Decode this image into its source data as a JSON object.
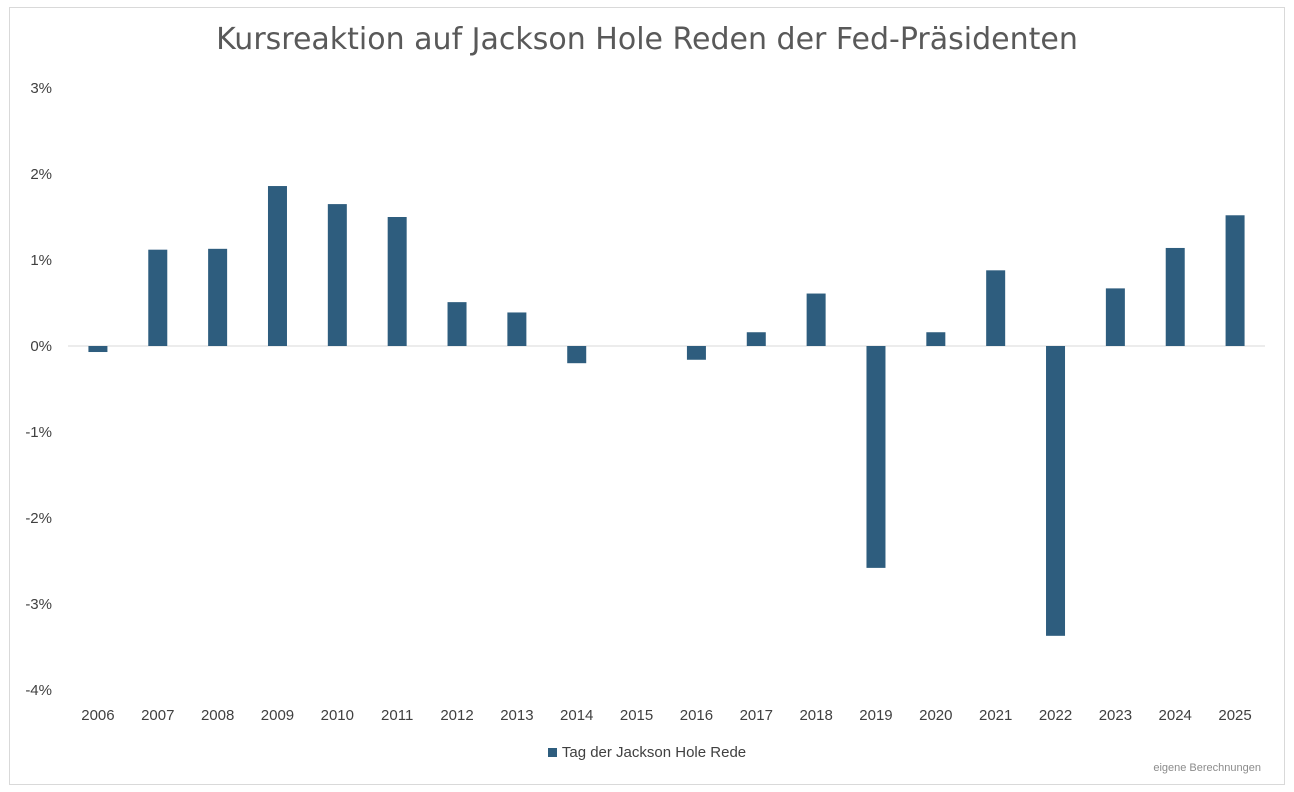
{
  "chart_data": {
    "type": "bar",
    "title": "Kursreaktion auf Jackson Hole Reden der Fed-Präsidenten",
    "xlabel": "",
    "ylabel": "",
    "categories": [
      "2006",
      "2007",
      "2008",
      "2009",
      "2010",
      "2011",
      "2012",
      "2013",
      "2014",
      "2015",
      "2016",
      "2017",
      "2018",
      "2019",
      "2020",
      "2021",
      "2022",
      "2023",
      "2024",
      "2025"
    ],
    "series": [
      {
        "name": "Tag der Jackson Hole Rede",
        "values": [
          -0.07,
          1.12,
          1.13,
          1.86,
          1.65,
          1.5,
          0.51,
          0.39,
          -0.2,
          0.0,
          -0.16,
          0.16,
          0.61,
          -2.58,
          0.16,
          0.88,
          -3.37,
          0.67,
          1.14,
          1.52
        ],
        "color": "#2e5d7e"
      }
    ],
    "ylim": [
      -4,
      3
    ],
    "yticks": [
      3,
      2,
      1,
      0,
      -1,
      -2,
      -3,
      -4
    ],
    "ytick_labels": [
      "3%",
      "2%",
      "1%",
      "0%",
      "-1%",
      "-2%",
      "-3%",
      "-4%"
    ],
    "grid": false,
    "legend_position": "bottom",
    "footnote": "eigene Berechnungen"
  }
}
